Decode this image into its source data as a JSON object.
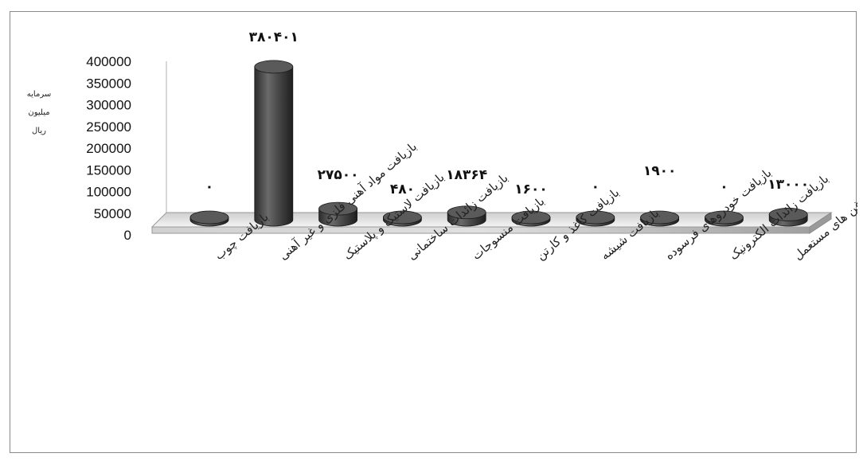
{
  "chart_data": {
    "type": "bar",
    "style": "3d-cylinder",
    "ylabel_lines": [
      "سرمایه",
      "میلیون",
      "ریال"
    ],
    "yticks": [
      "0",
      "50000",
      "100000",
      "150000",
      "200000",
      "250000",
      "300000",
      "350000",
      "400000"
    ],
    "ylim": [
      0,
      400000
    ],
    "grid": false,
    "legend": "none",
    "bar_color": "#4a4a4a",
    "categories": [
      "بازیافت چوب",
      "بازیافت مواد آهنی فلزی و غیر آهنی",
      "بازیافت لاستیک و پلاستیک",
      "بازیافت زائدات ساختمانی",
      "بازیافت منسوجات",
      "بازیافت کاغذ و کارتن",
      "بازیافت شیشه",
      "بازیافت خودروهای فرسوده",
      "بازیافت زائدات الکترونیک",
      "بازیافت روغن های مستعمل"
    ],
    "values": [
      0,
      380401,
      27500,
      480,
      18364,
      1600,
      0,
      1900,
      0,
      13000
    ],
    "data_labels": [
      "۰",
      "۳۸۰۴۰۱",
      "۲۷۵۰۰",
      "۴۸۰",
      "۱۸۳۶۴",
      "۱۶۰۰",
      "۰",
      "۱۹۰۰",
      "۰",
      "۱۳۰۰۰"
    ]
  }
}
